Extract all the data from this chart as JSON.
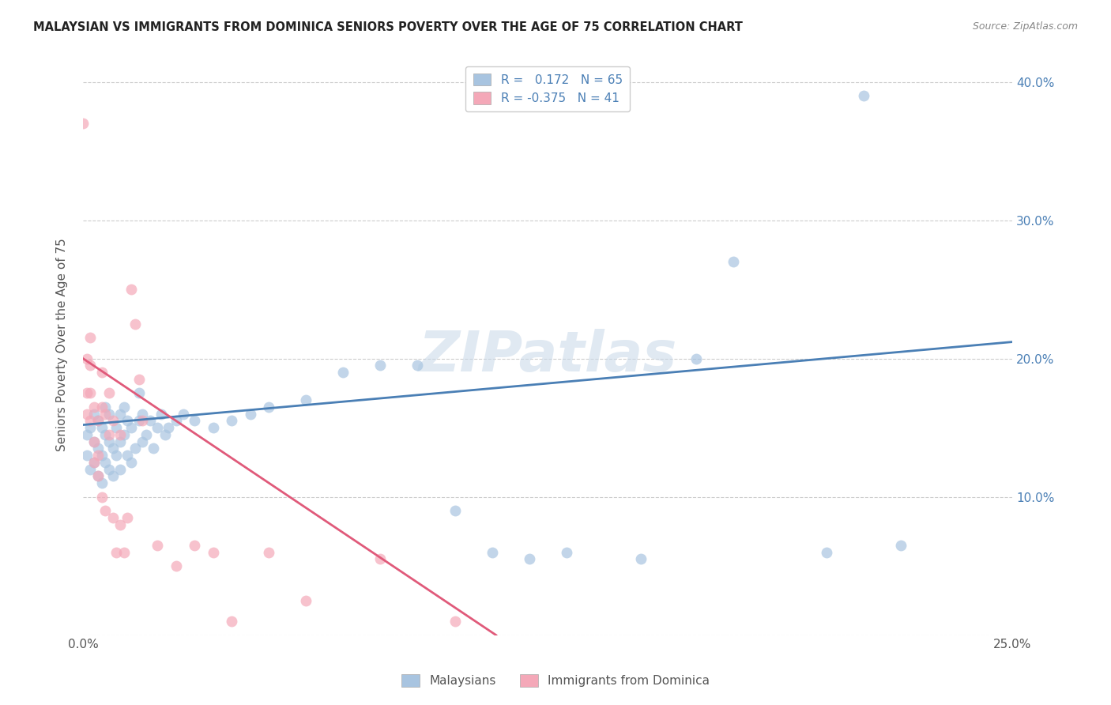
{
  "title": "MALAYSIAN VS IMMIGRANTS FROM DOMINICA SENIORS POVERTY OVER THE AGE OF 75 CORRELATION CHART",
  "source": "Source: ZipAtlas.com",
  "ylabel": "Seniors Poverty Over the Age of 75",
  "xlim": [
    0.0,
    0.25
  ],
  "ylim": [
    0.0,
    0.42
  ],
  "malaysian_R": 0.172,
  "malaysian_N": 65,
  "dominica_R": -0.375,
  "dominica_N": 41,
  "blue_color": "#a8c4e0",
  "pink_color": "#f4a8b8",
  "blue_line_color": "#4a7fb5",
  "pink_line_color": "#e05a7a",
  "legend_text_color": "#4a7fb5",
  "malaysian_x": [
    0.001,
    0.001,
    0.002,
    0.002,
    0.003,
    0.003,
    0.003,
    0.004,
    0.004,
    0.004,
    0.005,
    0.005,
    0.005,
    0.006,
    0.006,
    0.006,
    0.007,
    0.007,
    0.007,
    0.008,
    0.008,
    0.009,
    0.009,
    0.01,
    0.01,
    0.01,
    0.011,
    0.011,
    0.012,
    0.012,
    0.013,
    0.013,
    0.014,
    0.015,
    0.015,
    0.016,
    0.016,
    0.017,
    0.018,
    0.019,
    0.02,
    0.021,
    0.022,
    0.023,
    0.025,
    0.027,
    0.03,
    0.035,
    0.04,
    0.045,
    0.05,
    0.06,
    0.07,
    0.08,
    0.09,
    0.1,
    0.11,
    0.12,
    0.13,
    0.15,
    0.165,
    0.175,
    0.2,
    0.21,
    0.22
  ],
  "malaysian_y": [
    0.13,
    0.145,
    0.12,
    0.15,
    0.125,
    0.14,
    0.16,
    0.115,
    0.135,
    0.155,
    0.11,
    0.13,
    0.15,
    0.125,
    0.145,
    0.165,
    0.12,
    0.14,
    0.16,
    0.115,
    0.135,
    0.13,
    0.15,
    0.12,
    0.14,
    0.16,
    0.145,
    0.165,
    0.13,
    0.155,
    0.125,
    0.15,
    0.135,
    0.155,
    0.175,
    0.14,
    0.16,
    0.145,
    0.155,
    0.135,
    0.15,
    0.16,
    0.145,
    0.15,
    0.155,
    0.16,
    0.155,
    0.15,
    0.155,
    0.16,
    0.165,
    0.17,
    0.19,
    0.195,
    0.195,
    0.09,
    0.06,
    0.055,
    0.06,
    0.055,
    0.2,
    0.27,
    0.06,
    0.39,
    0.065
  ],
  "dominica_x": [
    0.0,
    0.001,
    0.001,
    0.001,
    0.002,
    0.002,
    0.002,
    0.002,
    0.003,
    0.003,
    0.003,
    0.004,
    0.004,
    0.004,
    0.005,
    0.005,
    0.005,
    0.006,
    0.006,
    0.007,
    0.007,
    0.008,
    0.008,
    0.009,
    0.01,
    0.01,
    0.011,
    0.012,
    0.013,
    0.014,
    0.015,
    0.016,
    0.02,
    0.025,
    0.03,
    0.035,
    0.04,
    0.05,
    0.06,
    0.08,
    0.1
  ],
  "dominica_y": [
    0.37,
    0.2,
    0.175,
    0.16,
    0.215,
    0.195,
    0.175,
    0.155,
    0.165,
    0.14,
    0.125,
    0.155,
    0.13,
    0.115,
    0.19,
    0.165,
    0.1,
    0.16,
    0.09,
    0.175,
    0.145,
    0.155,
    0.085,
    0.06,
    0.145,
    0.08,
    0.06,
    0.085,
    0.25,
    0.225,
    0.185,
    0.155,
    0.065,
    0.05,
    0.065,
    0.06,
    0.01,
    0.06,
    0.025,
    0.055,
    0.01
  ],
  "background_color": "#ffffff",
  "grid_color": "#cccccc"
}
